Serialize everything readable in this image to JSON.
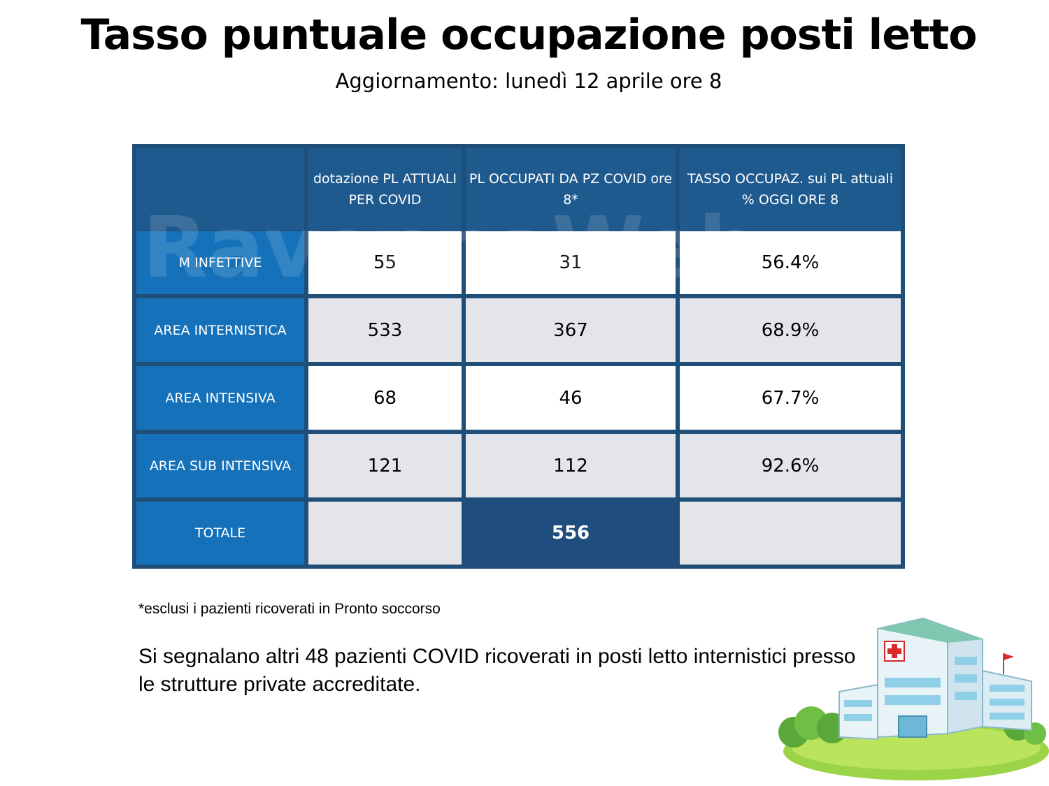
{
  "header": {
    "title": "Tasso puntuale occupazione posti letto",
    "subtitle": "Aggiornamento: lunedì 12 aprile ore 8"
  },
  "table": {
    "columns": [
      "",
      "dotazione PL ATTUALI PER COVID",
      "PL OCCUPATI DA PZ COVID ore 8*",
      "TASSO OCCUPAZ. sui PL attuali % OGGI ORE 8"
    ],
    "rows": [
      {
        "label": "M INFETTIVE",
        "capacity": "55",
        "occupied": "31",
        "rate": "56.4%"
      },
      {
        "label": "AREA INTERNISTICA",
        "capacity": "533",
        "occupied": "367",
        "rate": "68.9%"
      },
      {
        "label": "AREA INTENSIVA",
        "capacity": "68",
        "occupied": "46",
        "rate": "67.7%"
      },
      {
        "label": "AREA SUB INTENSIVA",
        "capacity": "121",
        "occupied": "112",
        "rate": "92.6%"
      }
    ],
    "total": {
      "label": "TOTALE",
      "capacity": "",
      "occupied": "556",
      "rate": ""
    }
  },
  "watermark": "RavennaWeb",
  "footnote": "*esclusi i pazienti ricoverati in Pronto soccorso",
  "note": "Si segnalano altri 48 pazienti COVID ricoverati in posti letto internistici presso le strutture private accreditate.",
  "illustration": {
    "icon": "hospital-icon"
  },
  "colors": {
    "header_bg": "#1f5a8e",
    "row_label_bg": "#1478c3",
    "cell_white": "#ffffff",
    "cell_gray": "#e3e5ea",
    "border": "#1f4e79"
  }
}
